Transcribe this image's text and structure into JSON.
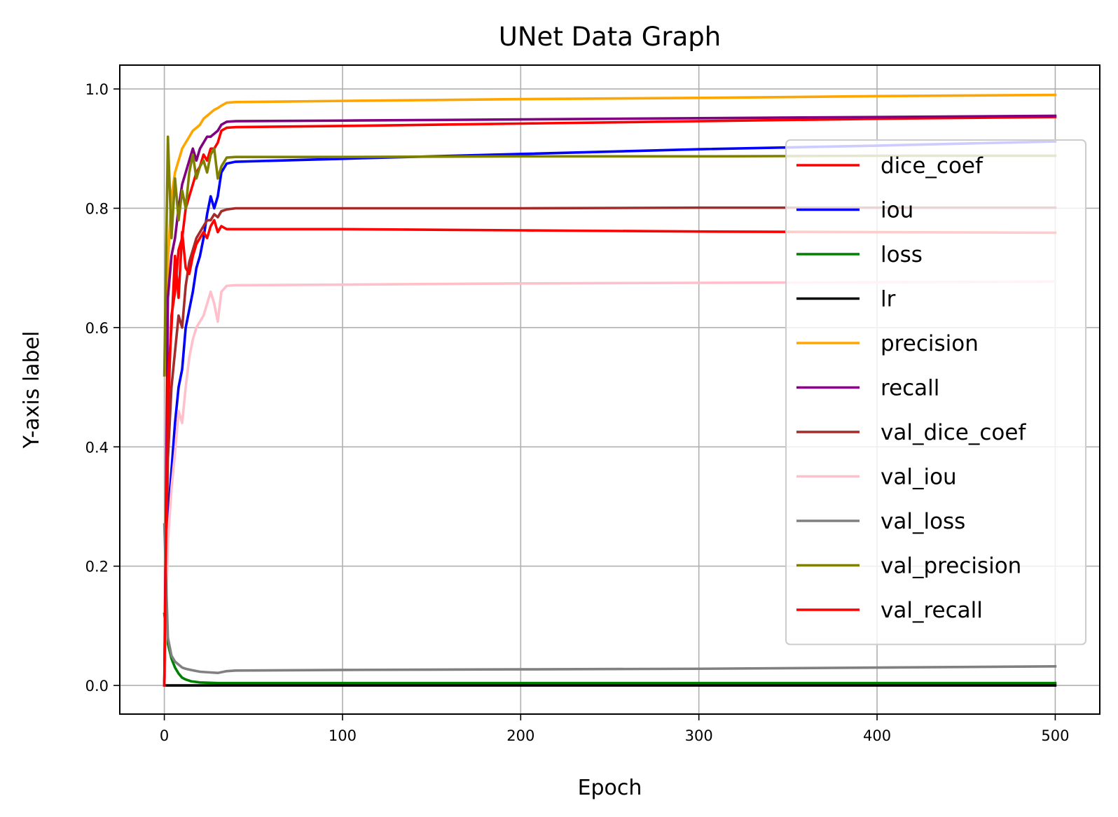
{
  "chart_data": {
    "type": "line",
    "title": "UNet Data Graph",
    "xlabel": "Epoch",
    "ylabel": "Y-axis label",
    "xlim": [
      -25,
      525
    ],
    "ylim": [
      -0.048,
      1.04
    ],
    "xticks": [
      0,
      100,
      200,
      300,
      400,
      500
    ],
    "xtick_labels": [
      "0",
      "100",
      "200",
      "300",
      "400",
      "500"
    ],
    "yticks": [
      0.0,
      0.2,
      0.4,
      0.6,
      0.8,
      1.0
    ],
    "ytick_labels": [
      "0.0",
      "0.2",
      "0.4",
      "0.6",
      "0.8",
      "1.0"
    ],
    "grid": true,
    "legend_position": "right",
    "series": [
      {
        "name": "dice_coef",
        "color": "#ff0000",
        "points": [
          [
            0,
            0.0
          ],
          [
            2,
            0.45
          ],
          [
            4,
            0.62
          ],
          [
            6,
            0.66
          ],
          [
            8,
            0.73
          ],
          [
            10,
            0.75
          ],
          [
            12,
            0.8
          ],
          [
            14,
            0.82
          ],
          [
            16,
            0.84
          ],
          [
            18,
            0.86
          ],
          [
            20,
            0.87
          ],
          [
            22,
            0.89
          ],
          [
            24,
            0.88
          ],
          [
            26,
            0.9
          ],
          [
            28,
            0.9
          ],
          [
            30,
            0.91
          ],
          [
            32,
            0.93
          ],
          [
            35,
            0.935
          ],
          [
            40,
            0.936
          ],
          [
            100,
            0.938
          ],
          [
            200,
            0.942
          ],
          [
            300,
            0.946
          ],
          [
            400,
            0.95
          ],
          [
            500,
            0.953
          ]
        ]
      },
      {
        "name": "iou",
        "color": "#0000ff",
        "points": [
          [
            0,
            0.0
          ],
          [
            2,
            0.28
          ],
          [
            4,
            0.36
          ],
          [
            6,
            0.44
          ],
          [
            8,
            0.5
          ],
          [
            10,
            0.53
          ],
          [
            12,
            0.6
          ],
          [
            14,
            0.63
          ],
          [
            16,
            0.66
          ],
          [
            18,
            0.7
          ],
          [
            20,
            0.72
          ],
          [
            22,
            0.75
          ],
          [
            24,
            0.79
          ],
          [
            26,
            0.82
          ],
          [
            28,
            0.8
          ],
          [
            30,
            0.82
          ],
          [
            32,
            0.86
          ],
          [
            35,
            0.875
          ],
          [
            40,
            0.878
          ],
          [
            100,
            0.883
          ],
          [
            200,
            0.891
          ],
          [
            300,
            0.899
          ],
          [
            400,
            0.905
          ],
          [
            500,
            0.912
          ]
        ]
      },
      {
        "name": "loss",
        "color": "#008000",
        "points": [
          [
            0,
            0.12
          ],
          [
            2,
            0.07
          ],
          [
            4,
            0.045
          ],
          [
            6,
            0.03
          ],
          [
            8,
            0.02
          ],
          [
            10,
            0.013
          ],
          [
            12,
            0.01
          ],
          [
            15,
            0.007
          ],
          [
            20,
            0.005
          ],
          [
            30,
            0.004
          ],
          [
            40,
            0.004
          ],
          [
            100,
            0.004
          ],
          [
            200,
            0.004
          ],
          [
            300,
            0.004
          ],
          [
            400,
            0.004
          ],
          [
            500,
            0.004
          ]
        ]
      },
      {
        "name": "lr",
        "color": "#000000",
        "points": [
          [
            0,
            0.0
          ],
          [
            500,
            0.0
          ]
        ]
      },
      {
        "name": "precision",
        "color": "#ffa500",
        "points": [
          [
            0,
            0.0
          ],
          [
            2,
            0.71
          ],
          [
            4,
            0.82
          ],
          [
            6,
            0.86
          ],
          [
            8,
            0.88
          ],
          [
            10,
            0.9
          ],
          [
            12,
            0.91
          ],
          [
            14,
            0.92
          ],
          [
            16,
            0.93
          ],
          [
            18,
            0.935
          ],
          [
            20,
            0.94
          ],
          [
            22,
            0.95
          ],
          [
            24,
            0.955
          ],
          [
            26,
            0.96
          ],
          [
            28,
            0.965
          ],
          [
            30,
            0.968
          ],
          [
            32,
            0.972
          ],
          [
            35,
            0.977
          ],
          [
            40,
            0.978
          ],
          [
            100,
            0.98
          ],
          [
            200,
            0.983
          ],
          [
            300,
            0.985
          ],
          [
            400,
            0.988
          ],
          [
            500,
            0.99
          ]
        ]
      },
      {
        "name": "recall",
        "color": "#800080",
        "points": [
          [
            0,
            0.0
          ],
          [
            2,
            0.65
          ],
          [
            4,
            0.72
          ],
          [
            6,
            0.75
          ],
          [
            8,
            0.8
          ],
          [
            10,
            0.84
          ],
          [
            12,
            0.86
          ],
          [
            14,
            0.88
          ],
          [
            16,
            0.9
          ],
          [
            18,
            0.88
          ],
          [
            20,
            0.9
          ],
          [
            22,
            0.91
          ],
          [
            24,
            0.92
          ],
          [
            26,
            0.92
          ],
          [
            28,
            0.925
          ],
          [
            30,
            0.93
          ],
          [
            32,
            0.94
          ],
          [
            35,
            0.945
          ],
          [
            40,
            0.946
          ],
          [
            100,
            0.947
          ],
          [
            200,
            0.949
          ],
          [
            300,
            0.951
          ],
          [
            400,
            0.953
          ],
          [
            500,
            0.955
          ]
        ]
      },
      {
        "name": "val_dice_coef",
        "color": "#a52a2a",
        "points": [
          [
            0,
            0.0
          ],
          [
            2,
            0.38
          ],
          [
            4,
            0.5
          ],
          [
            6,
            0.56
          ],
          [
            8,
            0.62
          ],
          [
            10,
            0.6
          ],
          [
            12,
            0.67
          ],
          [
            14,
            0.71
          ],
          [
            16,
            0.73
          ],
          [
            18,
            0.75
          ],
          [
            20,
            0.76
          ],
          [
            22,
            0.77
          ],
          [
            24,
            0.78
          ],
          [
            26,
            0.78
          ],
          [
            28,
            0.79
          ],
          [
            30,
            0.785
          ],
          [
            32,
            0.795
          ],
          [
            35,
            0.798
          ],
          [
            40,
            0.8
          ],
          [
            100,
            0.8
          ],
          [
            200,
            0.8
          ],
          [
            300,
            0.801
          ],
          [
            400,
            0.801
          ],
          [
            500,
            0.801
          ]
        ]
      },
      {
        "name": "val_iou",
        "color": "#ffc0cb",
        "points": [
          [
            0,
            0.0
          ],
          [
            2,
            0.24
          ],
          [
            4,
            0.33
          ],
          [
            6,
            0.39
          ],
          [
            8,
            0.46
          ],
          [
            10,
            0.44
          ],
          [
            12,
            0.5
          ],
          [
            14,
            0.55
          ],
          [
            16,
            0.58
          ],
          [
            18,
            0.6
          ],
          [
            20,
            0.61
          ],
          [
            22,
            0.62
          ],
          [
            24,
            0.64
          ],
          [
            26,
            0.66
          ],
          [
            28,
            0.64
          ],
          [
            30,
            0.61
          ],
          [
            32,
            0.66
          ],
          [
            35,
            0.67
          ],
          [
            40,
            0.671
          ],
          [
            100,
            0.672
          ],
          [
            200,
            0.674
          ],
          [
            300,
            0.675
          ],
          [
            400,
            0.676
          ],
          [
            500,
            0.677
          ]
        ]
      },
      {
        "name": "val_loss",
        "color": "#808080",
        "points": [
          [
            0,
            0.27
          ],
          [
            2,
            0.08
          ],
          [
            4,
            0.05
          ],
          [
            6,
            0.04
          ],
          [
            8,
            0.035
          ],
          [
            10,
            0.03
          ],
          [
            12,
            0.028
          ],
          [
            15,
            0.026
          ],
          [
            20,
            0.023
          ],
          [
            25,
            0.022
          ],
          [
            30,
            0.021
          ],
          [
            35,
            0.024
          ],
          [
            40,
            0.025
          ],
          [
            100,
            0.026
          ],
          [
            200,
            0.027
          ],
          [
            300,
            0.028
          ],
          [
            400,
            0.03
          ],
          [
            500,
            0.032
          ]
        ]
      },
      {
        "name": "val_precision",
        "color": "#808000",
        "points": [
          [
            0,
            0.52
          ],
          [
            2,
            0.92
          ],
          [
            4,
            0.75
          ],
          [
            6,
            0.85
          ],
          [
            8,
            0.78
          ],
          [
            10,
            0.83
          ],
          [
            12,
            0.8
          ],
          [
            14,
            0.86
          ],
          [
            16,
            0.89
          ],
          [
            18,
            0.85
          ],
          [
            20,
            0.87
          ],
          [
            22,
            0.88
          ],
          [
            24,
            0.86
          ],
          [
            26,
            0.89
          ],
          [
            28,
            0.9
          ],
          [
            30,
            0.85
          ],
          [
            32,
            0.87
          ],
          [
            35,
            0.885
          ],
          [
            40,
            0.886
          ],
          [
            100,
            0.886
          ],
          [
            200,
            0.887
          ],
          [
            300,
            0.887
          ],
          [
            400,
            0.888
          ],
          [
            500,
            0.888
          ]
        ]
      },
      {
        "name": "val_recall",
        "color": "#ff0000",
        "points": [
          [
            0,
            0.0
          ],
          [
            2,
            0.51
          ],
          [
            4,
            0.6
          ],
          [
            6,
            0.72
          ],
          [
            8,
            0.65
          ],
          [
            10,
            0.76
          ],
          [
            12,
            0.7
          ],
          [
            14,
            0.69
          ],
          [
            16,
            0.72
          ],
          [
            18,
            0.74
          ],
          [
            20,
            0.75
          ],
          [
            22,
            0.76
          ],
          [
            24,
            0.75
          ],
          [
            26,
            0.77
          ],
          [
            28,
            0.78
          ],
          [
            30,
            0.76
          ],
          [
            32,
            0.77
          ],
          [
            35,
            0.765
          ],
          [
            40,
            0.765
          ],
          [
            100,
            0.765
          ],
          [
            200,
            0.763
          ],
          [
            300,
            0.761
          ],
          [
            400,
            0.76
          ],
          [
            500,
            0.759
          ]
        ]
      }
    ]
  }
}
